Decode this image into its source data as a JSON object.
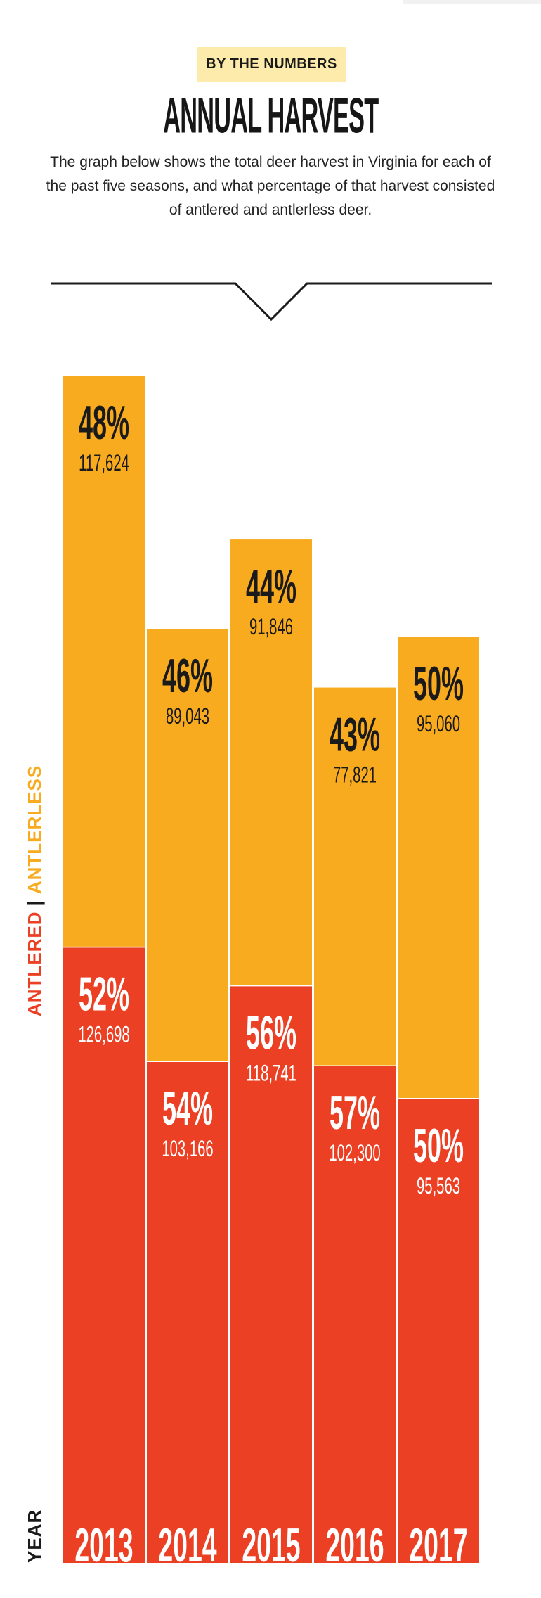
{
  "header": {
    "kicker": "BY THE NUMBERS",
    "title": "ANNUAL HARVEST",
    "intro": "The graph below shows the total deer harvest in Virginia for each of the past five seasons, and what percentage of that harvest consisted of antlered and antlerless deer."
  },
  "colors": {
    "antlered": "#ec4024",
    "antlerless": "#f8ab1f",
    "kicker_bg": "#fcebaa",
    "text": "#1a1a1a"
  },
  "legend": {
    "antlered": "ANTLERED",
    "separator": "|",
    "antlerless": "ANTLERLESS",
    "year_label": "YEAR"
  },
  "chart_data": {
    "type": "bar",
    "stacked": true,
    "categories": [
      "2013",
      "2014",
      "2015",
      "2016",
      "2017"
    ],
    "series": [
      {
        "name": "ANTLERED",
        "values": [
          126698,
          103166,
          118741,
          102300,
          95563
        ],
        "labels": [
          "126,698",
          "103,166",
          "118,741",
          "102,300",
          "95,563"
        ],
        "percents": [
          "52%",
          "54%",
          "56%",
          "57%",
          "50%"
        ]
      },
      {
        "name": "ANTLERLESS",
        "values": [
          117624,
          89043,
          91846,
          77821,
          95060
        ],
        "labels": [
          "117,624",
          "89,043",
          "91,846",
          "77,821",
          "95,060"
        ],
        "percents": [
          "48%",
          "46%",
          "44%",
          "43%",
          "50%"
        ]
      }
    ],
    "grid": false,
    "legend_position": "left, vertical"
  }
}
